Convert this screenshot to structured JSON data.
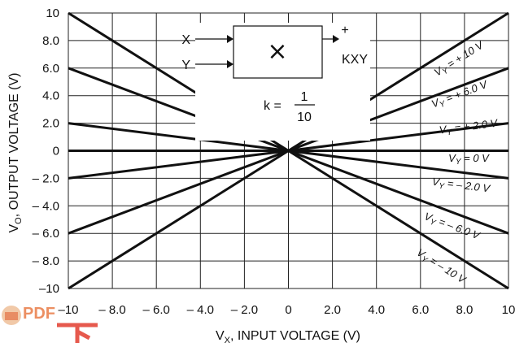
{
  "chart_data": {
    "type": "line",
    "x_ticks": [
      "–10",
      "– 8.0",
      "– 6.0",
      "– 4.0",
      "– 2.0",
      "0",
      "2.0",
      "4.0",
      "6.0",
      "8.0",
      "10"
    ],
    "y_ticks": [
      "10",
      "8.0",
      "6.0",
      "4.0",
      "2.0",
      "0",
      "– 2.0",
      "– 4.0",
      "– 6.0",
      "– 8.0",
      "–10"
    ],
    "xlabel_main": "V",
    "xlabel_sub": "X",
    "xlabel_rest": ", INPUT VOLTAGE (V)",
    "ylabel_main": "V",
    "ylabel_sub": "O",
    "ylabel_rest": ", OUTPUT VOLTAGE (V)",
    "xlim": [
      -10,
      10
    ],
    "ylim": [
      -10,
      10
    ],
    "grid": true,
    "series": [
      {
        "name_main": "V",
        "name_sub": "Y",
        "name_rest": " = + 10 V",
        "k_vy": 1.0,
        "x": [
          -10,
          10
        ],
        "y": [
          -10,
          10
        ]
      },
      {
        "name_main": "V",
        "name_sub": "Y",
        "name_rest": " = + 6.0 V",
        "k_vy": 0.6,
        "x": [
          -10,
          10
        ],
        "y": [
          -6,
          6
        ]
      },
      {
        "name_main": "V",
        "name_sub": "Y",
        "name_rest": " = + 2.0 V",
        "k_vy": 0.2,
        "x": [
          -10,
          10
        ],
        "y": [
          -2,
          2
        ]
      },
      {
        "name_main": "V",
        "name_sub": "Y",
        "name_rest": " = 0 V",
        "k_vy": 0.0,
        "x": [
          -10,
          10
        ],
        "y": [
          0,
          0
        ]
      },
      {
        "name_main": "V",
        "name_sub": "Y",
        "name_rest": " = – 2.0 V",
        "k_vy": -0.2,
        "x": [
          -10,
          10
        ],
        "y": [
          2,
          -2
        ]
      },
      {
        "name_main": "V",
        "name_sub": "Y",
        "name_rest": " = – 6.0 V",
        "k_vy": -0.6,
        "x": [
          -10,
          10
        ],
        "y": [
          6,
          -6
        ]
      },
      {
        "name_main": "V",
        "name_sub": "Y",
        "name_rest": " = – 10 V",
        "k_vy": -1.0,
        "x": [
          -10,
          10
        ],
        "y": [
          10,
          -10
        ]
      }
    ]
  },
  "diagram": {
    "input_x": "X",
    "input_y": "Y",
    "multiply_symbol": "×",
    "plus_sign": "+",
    "output": "KXY",
    "k_label": "k =",
    "k_num": "1",
    "k_den": "10"
  },
  "watermark": {
    "text": "PDF"
  }
}
